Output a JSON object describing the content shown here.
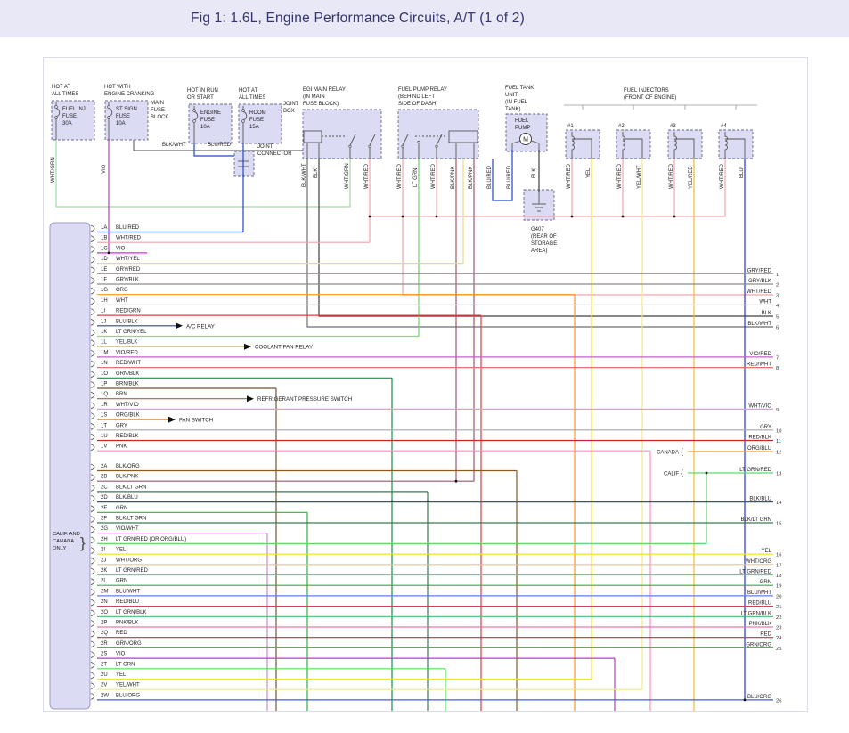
{
  "title_bar": {
    "title": "Fig 1: 1.6L, Engine Performance Circuits, A/T (1 of 2)"
  },
  "power_sources": [
    {
      "heading": [
        "HOT AT",
        "ALL TIMES"
      ],
      "fuse": [
        "FUEL INJ",
        "FUSE",
        "30A"
      ]
    },
    {
      "heading": [
        "HOT WITH",
        "ENGINE CRANKING"
      ],
      "fuse": [
        "ST SIGN",
        "FUSE",
        "10A"
      ],
      "side_note": [
        "MAIN",
        "FUSE",
        "BLOCK"
      ]
    },
    {
      "heading": [
        "HOT IN RUN",
        "OR START"
      ],
      "fuse": [
        "ENGINE",
        "FUSE",
        "10A"
      ]
    },
    {
      "heading": [
        "HOT AT",
        "ALL TIMES"
      ],
      "fuse": [
        "ROOM",
        "FUSE",
        "15A"
      ],
      "side_note": [
        "JOINT",
        "BOX"
      ]
    }
  ],
  "components": {
    "joint_connector": [
      "JOINT",
      "CONNECTOR"
    ],
    "egi_main_relay": [
      "EGI MAIN RELAY",
      "(IN MAIN",
      "FUSE BLOCK)"
    ],
    "fuel_pump_relay": [
      "FUEL PUMP RELAY",
      "(BEHIND LEFT",
      "SIDE OF DASH)"
    ],
    "fuel_tank_unit": [
      "FUEL TANK",
      "UNIT",
      "(IN FUEL",
      "TANK)"
    ],
    "fuel_pump": [
      "FUEL",
      "PUMP"
    ],
    "motor_symbol": "M",
    "fuel_injectors": [
      "FUEL INJECTORS",
      "(FRONT OF ENGINE)"
    ],
    "injector_numbers": [
      "#1",
      "#2",
      "#3",
      "#4"
    ],
    "ground": [
      "G407",
      "(REAR OF",
      "STORAGE",
      "AREA)"
    ]
  },
  "top_wire_labels": [
    "WHT/GRN",
    "VIO",
    "BLK/WHT",
    "BLU/RED",
    "BLK/WHT",
    "BLK",
    "WHT/GRN",
    "WHT/RED",
    "WHT/RED",
    "LT GRN",
    "WHT/RED",
    "BLK/PNK",
    "BLK/PNK",
    "BLU/RED",
    "BLU/RED",
    "BLK",
    "WHT/RED",
    "YEL",
    "WHT/RED",
    "YEL/WHT",
    "WHT/RED",
    "YEL/RED",
    "WHT/RED",
    "BLU"
  ],
  "ecu_connector": {
    "note": [
      "CALIF. AND",
      "CANADA",
      "ONLY"
    ],
    "rows_1": [
      {
        "pin": "1A",
        "wire": "BLU/RED"
      },
      {
        "pin": "1B",
        "wire": "WHT/RED"
      },
      {
        "pin": "1C",
        "wire": "VIO"
      },
      {
        "pin": "1D",
        "wire": "WHT/YEL"
      },
      {
        "pin": "1E",
        "wire": "GRY/RED"
      },
      {
        "pin": "1F",
        "wire": "GRY/BLK"
      },
      {
        "pin": "1G",
        "wire": "ORG"
      },
      {
        "pin": "1H",
        "wire": "WHT"
      },
      {
        "pin": "1I",
        "wire": "RED/GRN"
      },
      {
        "pin": "1J",
        "wire": "BLU/BLK"
      },
      {
        "pin": "1K",
        "wire": "LT GRN/YEL"
      },
      {
        "pin": "1L",
        "wire": "YEL/BLK"
      },
      {
        "pin": "1M",
        "wire": "VIO/RED"
      },
      {
        "pin": "1N",
        "wire": "RED/WHT"
      },
      {
        "pin": "1O",
        "wire": "GRN/BLK"
      },
      {
        "pin": "1P",
        "wire": "BRN/BLK"
      },
      {
        "pin": "1Q",
        "wire": "BRN"
      },
      {
        "pin": "1R",
        "wire": "WHT/VIO"
      },
      {
        "pin": "1S",
        "wire": "ORG/BLK"
      },
      {
        "pin": "1T",
        "wire": "GRY"
      },
      {
        "pin": "1U",
        "wire": "RED/BLK"
      },
      {
        "pin": "1V",
        "wire": "PNK"
      }
    ],
    "rows_2": [
      {
        "pin": "2A",
        "wire": "BLK/ORG"
      },
      {
        "pin": "2B",
        "wire": "BLK/PNK"
      },
      {
        "pin": "2C",
        "wire": "BLK/LT GRN"
      },
      {
        "pin": "2D",
        "wire": "BLK/BLU"
      },
      {
        "pin": "2E",
        "wire": "GRN"
      },
      {
        "pin": "2F",
        "wire": "BLK/LT GRN"
      },
      {
        "pin": "2G",
        "wire": "VIO/WHT"
      },
      {
        "pin": "2H",
        "wire": "LT GRN/RED (OR ORG/BLU)"
      },
      {
        "pin": "2I",
        "wire": "YEL"
      },
      {
        "pin": "2J",
        "wire": "WHT/ORG"
      },
      {
        "pin": "2K",
        "wire": "LT GRN/RED"
      },
      {
        "pin": "2L",
        "wire": "GRN"
      },
      {
        "pin": "2M",
        "wire": "BLU/WHT"
      },
      {
        "pin": "2N",
        "wire": "RED/BLU"
      },
      {
        "pin": "2O",
        "wire": "LT GRN/BLK"
      },
      {
        "pin": "2P",
        "wire": "PNK/BLK"
      },
      {
        "pin": "2Q",
        "wire": "RED"
      },
      {
        "pin": "2R",
        "wire": "GRN/ORG"
      },
      {
        "pin": "2S",
        "wire": "VIO"
      },
      {
        "pin": "2T",
        "wire": "LT GRN"
      },
      {
        "pin": "2U",
        "wire": "YEL"
      },
      {
        "pin": "2V",
        "wire": "YEL/WHT"
      },
      {
        "pin": "2W",
        "wire": "BLU/ORG"
      }
    ]
  },
  "callouts": [
    "A/C RELAY",
    "COOLANT FAN RELAY",
    "REFRIGERANT PRESSURE SWITCH",
    "FAN SWITCH"
  ],
  "right_outputs": [
    {
      "wire": "GRY/RED",
      "num": "1"
    },
    {
      "wire": "GRY/BLK",
      "num": "2"
    },
    {
      "wire": "WHT/RED",
      "num": "3"
    },
    {
      "wire": "WHT",
      "num": "4"
    },
    {
      "wire": "BLK",
      "num": "5"
    },
    {
      "wire": "BLK/WHT",
      "num": "6"
    },
    {
      "wire": "VIO/RED",
      "num": "7"
    },
    {
      "wire": "RED/WHT",
      "num": "8"
    },
    {
      "wire": "WHT/VIO",
      "num": "9"
    },
    {
      "wire": "GRY",
      "num": "10"
    },
    {
      "wire": "RED/BLK",
      "num": "11"
    },
    {
      "wire": "ORG/BLU",
      "num": "12"
    },
    {
      "wire": "LT GRN/RED",
      "num": "13"
    },
    {
      "wire": "BLK/BLU",
      "num": "14"
    },
    {
      "wire": "BLK/LT GRN",
      "num": "15"
    },
    {
      "wire": "YEL",
      "num": "16"
    },
    {
      "wire": "WHT/ORG",
      "num": "17"
    },
    {
      "wire": "LT GRN/RED",
      "num": "18"
    },
    {
      "wire": "GRN",
      "num": "19"
    },
    {
      "wire": "BLU/WHT",
      "num": "20"
    },
    {
      "wire": "RED/BLU",
      "num": "21"
    },
    {
      "wire": "LT GRN/BLK",
      "num": "22"
    },
    {
      "wire": "PNK/BLK",
      "num": "23"
    },
    {
      "wire": "RED",
      "num": "24"
    },
    {
      "wire": "GRN/ORG",
      "num": "25"
    },
    {
      "wire": "BLU/ORG",
      "num": "26"
    }
  ],
  "variant_labels": {
    "canada": "CANADA",
    "calif": "CALIF"
  },
  "wire_colors": {
    "BLK": "#404040",
    "BLK/WHT": "#6e6e6e",
    "BLK/ORG": "#8a5a20",
    "BLK/PNK": "#9c5868",
    "BLK/LT GRN": "#3d7a55",
    "BLK/BLU": "#3d4e8f",
    "BLU": "#2233dd",
    "BLU/RED": "#2244cc",
    "BLU/BLK": "#2c3fb0",
    "BLU/WHT": "#5f7fe8",
    "BLU/ORG": "#4a5fd0",
    "BRN": "#9a6b3f",
    "BRN/BLK": "#7a5230",
    "GRN": "#2faf3f",
    "GRN/BLK": "#1f8f3f",
    "GRN/ORG": "#57b347",
    "GRY": "#a9a9a9",
    "GRY/RED": "#9b8f93",
    "GRY/BLK": "#8c8c8c",
    "LT GRN": "#55e055",
    "LT GRN/YEL": "#7fe84f",
    "LT GRN/RED": "#5fd96f",
    "LT GRN/BLK": "#43c06b",
    "ORG": "#ff9518",
    "ORG/BLK": "#e8861a",
    "ORG/BLU": "#f09a30",
    "PNK": "#ff8fc0",
    "PNK/BLK": "#e87aa8",
    "RED": "#e82222",
    "RED/GRN": "#d9403a",
    "RED/WHT": "#ef7070",
    "RED/BLU": "#d04058",
    "RED/BLK": "#c62828",
    "VIO": "#c92fd1",
    "VIO/RED": "#c460c9",
    "VIO/WHT": "#cf86dd",
    "WHT": "#c9c9c9",
    "WHT/RED": "#f2a3ac",
    "WHT/GRN": "#a3d6a3",
    "WHT/YEL": "#e3dc8d",
    "WHT/VIO": "#d0a3e0",
    "WHT/ORG": "#efc089",
    "YEL": "#f2e422",
    "YEL/BLK": "#cfc32a",
    "YEL/WHT": "#efe98a",
    "YEL/RED": "#f0b83a"
  }
}
